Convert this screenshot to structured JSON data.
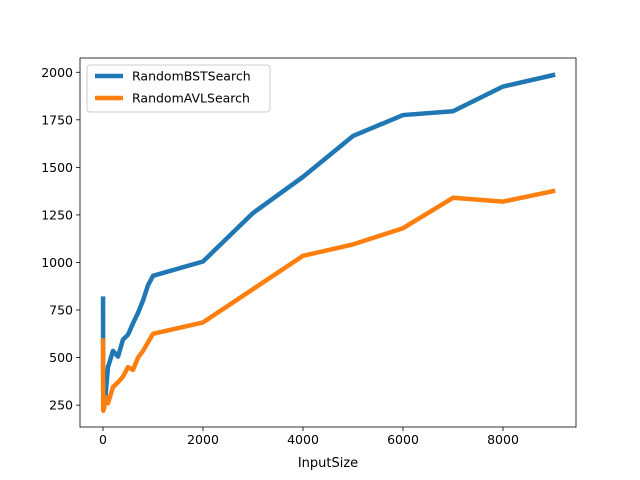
{
  "chart_data": {
    "type": "line",
    "title": "",
    "xlabel": "InputSize",
    "ylabel": "",
    "xlim": [
      -460,
      9460
    ],
    "ylim": [
      135,
      2075
    ],
    "xticks": [
      0,
      2000,
      4000,
      6000,
      8000
    ],
    "xtick_labels": [
      "0",
      "2000",
      "4000",
      "6000",
      "8000"
    ],
    "yticks": [
      250,
      500,
      750,
      1000,
      1250,
      1500,
      1750,
      2000
    ],
    "ytick_labels": [
      "250",
      "500",
      "750",
      "1000",
      "1250",
      "1500",
      "1750",
      "2000"
    ],
    "grid": false,
    "legend": "top-left",
    "series": [
      {
        "name": "RandomBSTSearch",
        "color": "#1f77b4",
        "x": [
          1,
          2,
          5,
          10,
          20,
          50,
          100,
          200,
          300,
          400,
          500,
          600,
          700,
          800,
          900,
          1000,
          2000,
          3000,
          4000,
          5000,
          6000,
          7000,
          8000,
          9000
        ],
        "y": [
          810,
          560,
          240,
          280,
          330,
          300,
          450,
          535,
          505,
          595,
          620,
          680,
          735,
          800,
          880,
          930,
          1005,
          1260,
          1450,
          1665,
          1775,
          1795,
          1925,
          1985
        ]
      },
      {
        "name": "RandomAVLSearch",
        "color": "#ff7f0e",
        "x": [
          1,
          2,
          5,
          10,
          20,
          50,
          100,
          200,
          300,
          400,
          500,
          600,
          700,
          800,
          900,
          1000,
          2000,
          3000,
          4000,
          5000,
          6000,
          7000,
          8000,
          9000
        ],
        "y": [
          590,
          400,
          220,
          235,
          230,
          290,
          260,
          345,
          370,
          400,
          450,
          435,
          500,
          535,
          580,
          625,
          685,
          860,
          1035,
          1095,
          1180,
          1340,
          1320,
          1375
        ]
      }
    ]
  }
}
